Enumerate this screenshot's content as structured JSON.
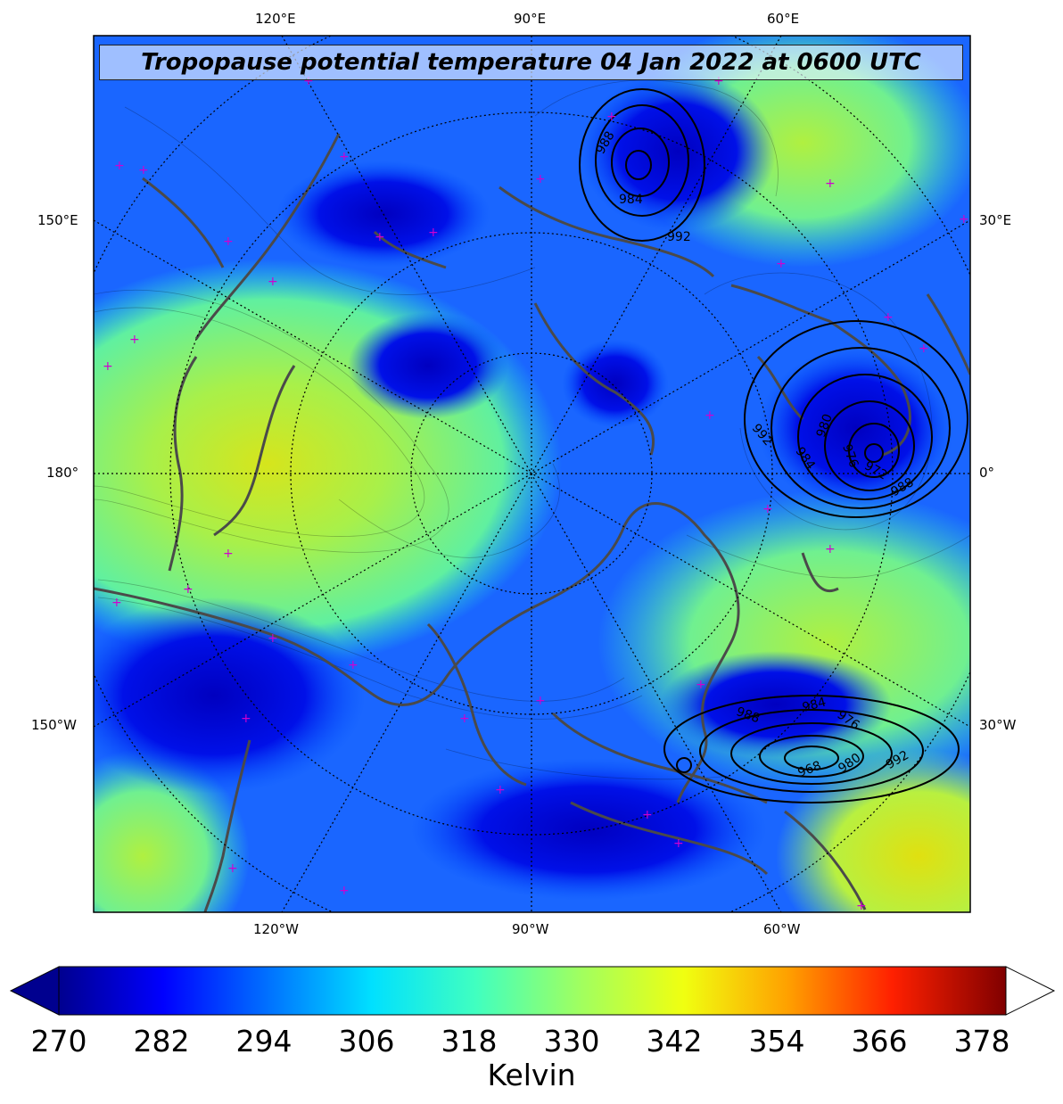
{
  "title": "Tropopause potential temperature 04 Jan 2022 at 0600 UTC",
  "axis_labels": {
    "top": [
      "120°E",
      "90°E",
      "60°E"
    ],
    "bottom": [
      "120°W",
      "90°W",
      "60°W"
    ],
    "left": [
      "150°E",
      "180°",
      "150°W"
    ],
    "right": [
      "30°E",
      "0°",
      "30°W"
    ]
  },
  "colorbar": {
    "ticks": [
      "270",
      "282",
      "294",
      "306",
      "318",
      "330",
      "342",
      "354",
      "366",
      "378"
    ],
    "label": "Kelvin",
    "range": [
      270,
      381
    ],
    "colors": [
      "#00008f",
      "#0000ff",
      "#0080ff",
      "#00e5ff",
      "#40ffbf",
      "#a0ff60",
      "#e6ff1a",
      "#ffc000",
      "#ff6000",
      "#ff1000",
      "#800000"
    ]
  },
  "pressure_contours": {
    "labels": [
      "988",
      "984",
      "992",
      "980",
      "976",
      "972",
      "992",
      "984",
      "988",
      "968",
      "980",
      "976",
      "992",
      "984",
      "988"
    ]
  }
}
